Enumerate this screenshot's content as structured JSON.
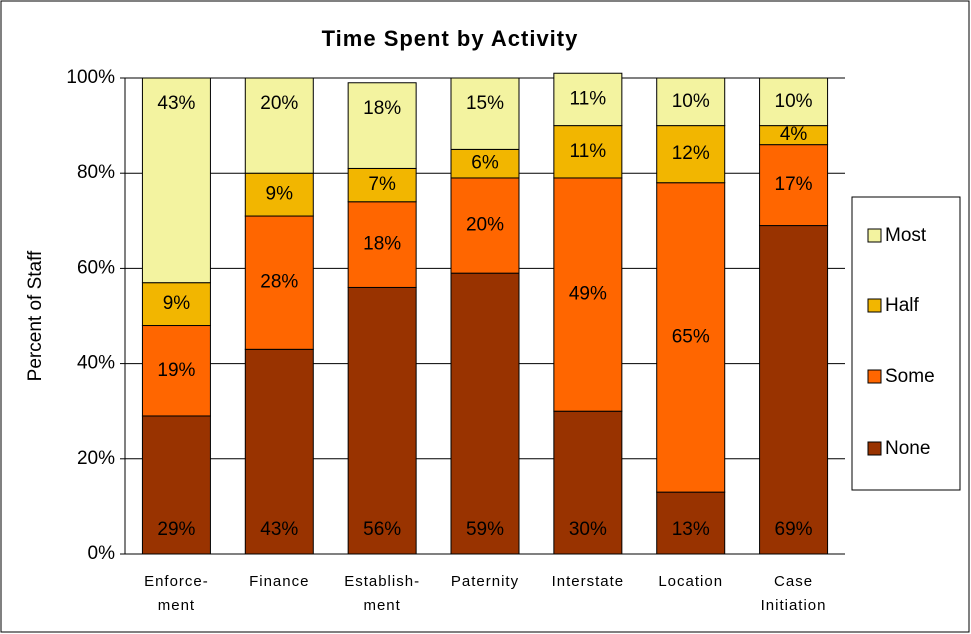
{
  "chart_data": {
    "type": "stacked_bar",
    "title": "Time Spent by Activity",
    "y_label": "Percent of Staff",
    "categories": [
      "Enforce-\nment",
      "Finance",
      "Establish-\nment",
      "Paternity",
      "Interstate",
      "Location",
      "Case\nInitiation"
    ],
    "series": [
      {
        "name": "None",
        "color": "#993300",
        "values": [
          29,
          43,
          56,
          59,
          30,
          13,
          69
        ],
        "value_labels": [
          "29%",
          "43%",
          "56%",
          "59%",
          "30%",
          "13%",
          "69%"
        ]
      },
      {
        "name": "Some",
        "color": "#ff6600",
        "values": [
          19,
          28,
          18,
          20,
          49,
          65,
          17
        ],
        "value_labels": [
          "19%",
          "28%",
          "18%",
          "20%",
          "49%",
          "65%",
          "17%"
        ]
      },
      {
        "name": "Half",
        "color": "#f2b600",
        "values": [
          9,
          9,
          7,
          6,
          11,
          12,
          4
        ],
        "value_labels": [
          "9%",
          "9%",
          "7%",
          "6%",
          "11%",
          "12%",
          "4%"
        ]
      },
      {
        "name": "Most",
        "color": "#f3f3a0",
        "values": [
          43,
          20,
          18,
          15,
          11,
          10,
          10
        ],
        "value_labels": [
          "43%",
          "20%",
          "18%",
          "15%",
          "11%",
          "10%",
          "10%"
        ]
      }
    ],
    "ylim": [
      0,
      100
    ],
    "yticks": [
      {
        "value": 0,
        "label": "0%"
      },
      {
        "value": 20,
        "label": "20%"
      },
      {
        "value": 40,
        "label": "40%"
      },
      {
        "value": 60,
        "label": "60%"
      },
      {
        "value": 80,
        "label": "80%"
      },
      {
        "value": 100,
        "label": "100%"
      }
    ],
    "grid": true,
    "legend": "right"
  }
}
